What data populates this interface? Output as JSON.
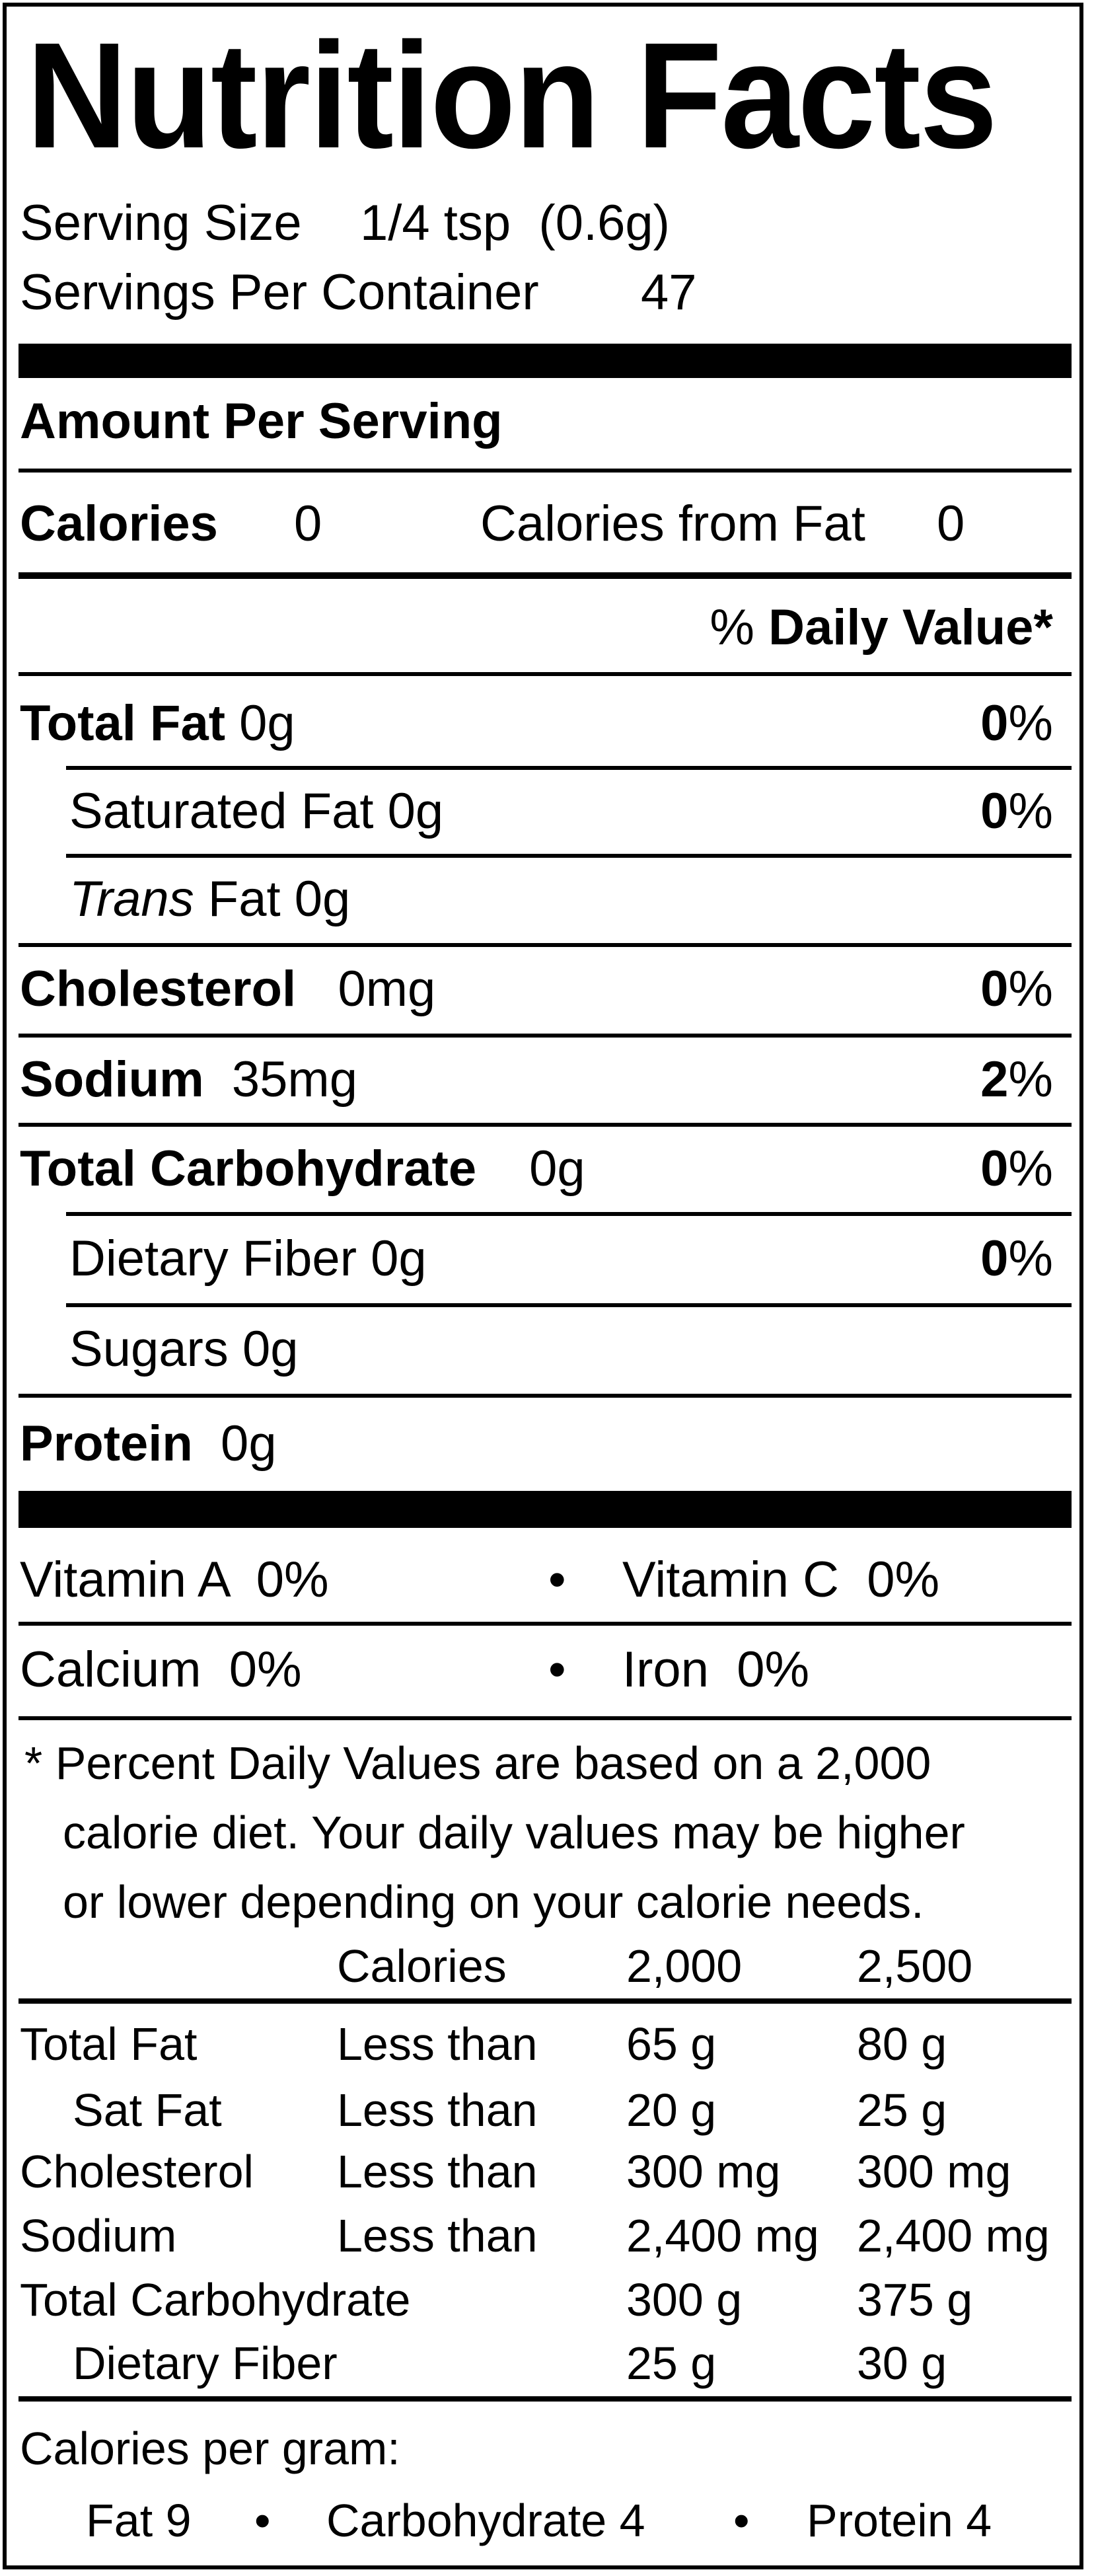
{
  "title": "Nutrition Facts",
  "serving": {
    "size_label": "Serving Size",
    "size_value": "1/4 tsp  (0.6g)",
    "per_container_label": "Servings Per Container",
    "per_container_value": "47"
  },
  "amount_per_serving": "Amount Per Serving",
  "calories": {
    "label": "Calories",
    "value": "0",
    "from_fat_label": "Calories from Fat",
    "from_fat_value": "0"
  },
  "daily_value_header": {
    "pct": "%",
    "label": "Daily Value*"
  },
  "nutrients": [
    {
      "name": "Total Fat",
      "amount": "0g",
      "dv": "0",
      "pct": "%"
    },
    {
      "name": "Saturated Fat",
      "amount": "0g",
      "dv": "0",
      "pct": "%"
    },
    {
      "name": "Trans",
      "name2": "Fat",
      "amount": "0g"
    },
    {
      "name": "Cholesterol",
      "amount": "0mg",
      "dv": "0",
      "pct": "%"
    },
    {
      "name": "Sodium",
      "amount": "35mg",
      "dv": "2",
      "pct": "%"
    },
    {
      "name": "Total Carbohydrate",
      "amount": "0g",
      "dv": "0",
      "pct": "%"
    },
    {
      "name": "Dietary Fiber",
      "amount": "0g",
      "dv": "0",
      "pct": "%"
    },
    {
      "name": "Sugars",
      "amount": "0g"
    },
    {
      "name": "Protein",
      "amount": "0g"
    }
  ],
  "vitamins": {
    "vitamin_a": "Vitamin A  0%",
    "vitamin_c": "Vitamin C  0%",
    "calcium": "Calcium  0%",
    "iron": "Iron  0%",
    "bullet": "•"
  },
  "footnote": [
    "* Percent Daily Values are based on a 2,000",
    "calorie diet. Your daily values may be higher",
    "or lower depending on your calorie needs."
  ],
  "dv_table": {
    "header": [
      "Calories",
      "2,000",
      "2,500"
    ],
    "rows": [
      [
        "Total Fat",
        "Less than",
        "65 g",
        "80 g"
      ],
      [
        "Sat Fat",
        "Less than",
        "20 g",
        "25 g"
      ],
      [
        "Cholesterol",
        "Less than",
        "300 mg",
        "300 mg"
      ],
      [
        "Sodium",
        "Less than",
        "2,400 mg",
        "2,400 mg"
      ],
      [
        "Total Carbohydrate",
        "",
        "300 g",
        "375 g"
      ],
      [
        "Dietary Fiber",
        "",
        "25 g",
        "30 g"
      ]
    ]
  },
  "calories_per_gram": {
    "label": "Calories per gram:",
    "fat": "Fat 9",
    "carb": "Carbohydrate 4",
    "protein": "Protein 4",
    "bullet": "•"
  }
}
